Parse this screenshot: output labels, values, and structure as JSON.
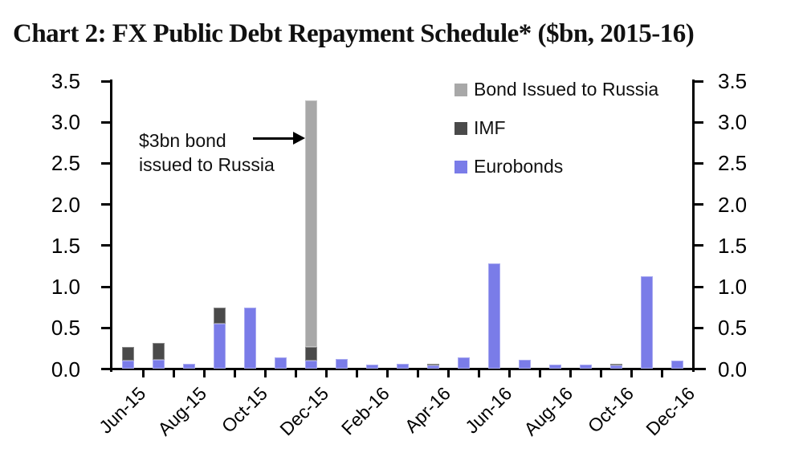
{
  "page": {
    "title": "Chart 2: FX Public Debt Repayment Schedule* ($bn, 2015-16)"
  },
  "chart_data": {
    "type": "bar",
    "stacked": true,
    "title": "Chart 2: FX Public Debt Repayment Schedule* ($bn, 2015-16)",
    "xlabel": "",
    "ylabel": "",
    "ylim": [
      0,
      3.5
    ],
    "y_tick_step": 0.5,
    "y_tick_labels": [
      "0.0",
      "0.5",
      "1.0",
      "1.5",
      "2.0",
      "2.5",
      "3.0",
      "3.5"
    ],
    "y_axis_sides": [
      "left",
      "right"
    ],
    "grid": false,
    "categories": [
      "Jun-15",
      "Jul-15",
      "Aug-15",
      "Sep-15",
      "Oct-15",
      "Nov-15",
      "Dec-15",
      "Jan-16",
      "Feb-16",
      "Mar-16",
      "Apr-16",
      "May-16",
      "Jun-16",
      "Jul-16",
      "Aug-16",
      "Sep-16",
      "Oct-16",
      "Nov-16",
      "Dec-16"
    ],
    "x_tick_labels_shown": [
      "Jun-15",
      "Aug-15",
      "Oct-15",
      "Dec-15",
      "Feb-16",
      "Apr-16",
      "Jun-16",
      "Aug-16",
      "Oct-16",
      "Dec-16"
    ],
    "series": [
      {
        "name": "Eurobonds",
        "color": "#7a7ce8",
        "values": [
          0.1,
          0.11,
          0.06,
          0.55,
          0.75,
          0.14,
          0.1,
          0.12,
          0.05,
          0.06,
          0.04,
          0.14,
          1.28,
          0.11,
          0.05,
          0.05,
          0.04,
          1.13,
          0.1
        ]
      },
      {
        "name": "IMF",
        "color": "#4a4a4a",
        "values": [
          0.17,
          0.21,
          0,
          0.2,
          0,
          0,
          0.17,
          0,
          0,
          0,
          0.02,
          0,
          0,
          0,
          0,
          0,
          0.02,
          0,
          0
        ]
      },
      {
        "name": "Bond Issued to Russia",
        "color": "#a8a8a8",
        "values": [
          0,
          0,
          0,
          0,
          0,
          0,
          3.0,
          0,
          0,
          0,
          0,
          0,
          0,
          0,
          0,
          0,
          0,
          0,
          0
        ]
      }
    ],
    "legend": {
      "position": "top-right",
      "entries": [
        "Bond Issued to Russia",
        "IMF",
        "Eurobonds"
      ]
    },
    "annotation": {
      "line1": "$3bn bond",
      "line2": "issued to Russia",
      "target": "Dec-15",
      "arrow": "right"
    }
  }
}
